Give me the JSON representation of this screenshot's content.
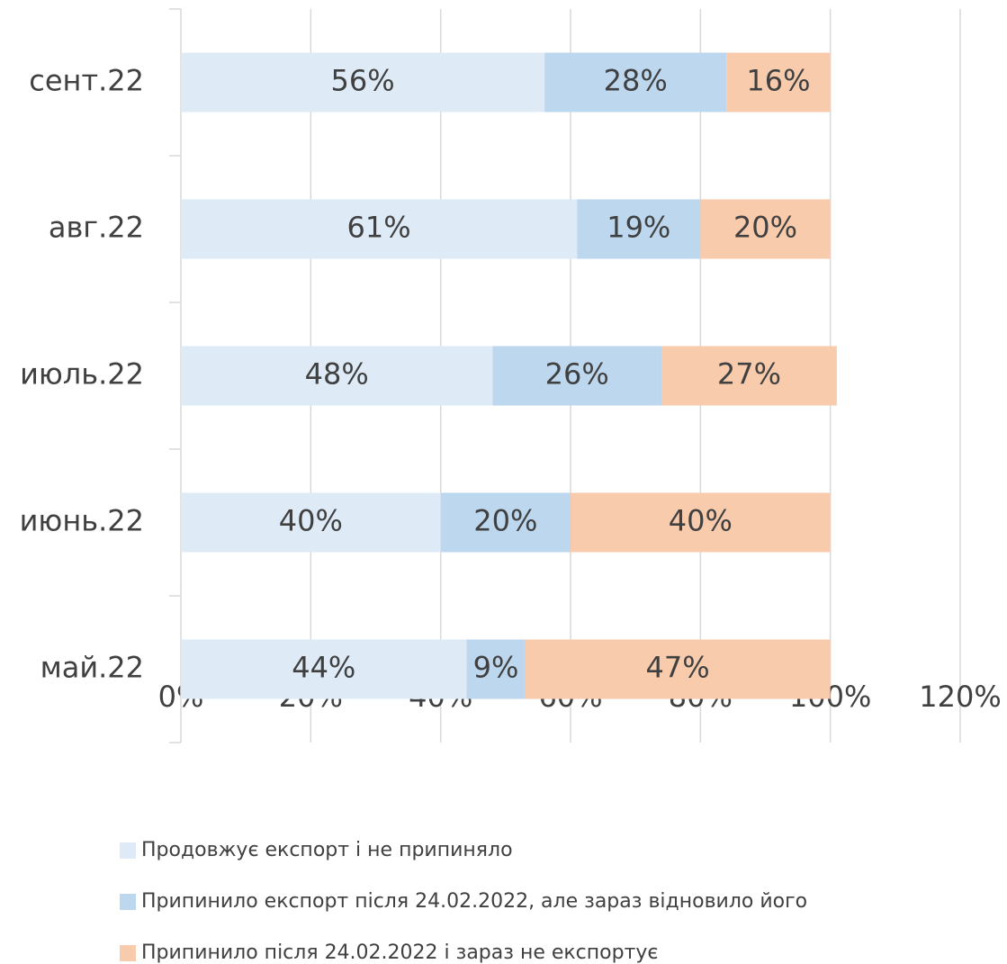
{
  "chart_data": {
    "type": "stacked-bar-horizontal",
    "categories": [
      "сент.22",
      "авг.22",
      "июль.22",
      "июнь.22",
      "май.22"
    ],
    "series": [
      {
        "name": "Продовжує експорт і не припиняло",
        "color": "#deebf7",
        "values": [
          56,
          61,
          48,
          40,
          44
        ],
        "value_labels": [
          "56%",
          "61%",
          "48%",
          "40%",
          "44%"
        ]
      },
      {
        "name": "Припинило експорт після 24.02.2022, але зараз відновило його",
        "color": "#bdd7ee",
        "values": [
          28,
          19,
          26,
          20,
          9
        ],
        "value_labels": [
          "28%",
          "19%",
          "26%",
          "20%",
          "9%"
        ]
      },
      {
        "name": "Припинило після 24.02.2022 і зараз не експортує",
        "color": "#f8cbad",
        "values": [
          16,
          20,
          27,
          40,
          47
        ],
        "value_labels": [
          "16%",
          "20%",
          "27%",
          "40%",
          "47%"
        ]
      }
    ],
    "xlim": [
      0,
      120
    ],
    "xticks": [
      {
        "value": 0,
        "label": "0%"
      },
      {
        "value": 20,
        "label": "20%"
      },
      {
        "value": 40,
        "label": "40%"
      },
      {
        "value": 60,
        "label": "60%"
      },
      {
        "value": 80,
        "label": "80%"
      },
      {
        "value": 100,
        "label": "100%"
      },
      {
        "value": 120,
        "label": "120%"
      }
    ],
    "grid": true
  }
}
